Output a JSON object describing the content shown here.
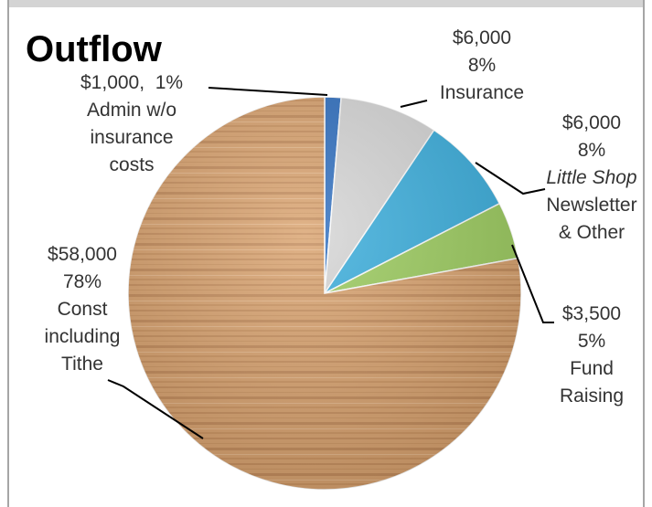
{
  "chart_data": {
    "type": "pie",
    "title": "Outflow",
    "start_angle_deg": 90,
    "direction": "clockwise",
    "slices": [
      {
        "amount": "$1,000,",
        "percent": "1%",
        "label_lines": [
          "Admin w/o",
          "insurance",
          "costs"
        ],
        "value": 1000,
        "color": "#2f6fc0"
      },
      {
        "amount": "$6,000",
        "percent": "8%",
        "label_lines": [
          "Insurance"
        ],
        "value": 6000,
        "color": "#d6d6d6"
      },
      {
        "amount": "$6,000",
        "percent": "8%",
        "label_lines": [
          "Little Shop",
          "Newsletter",
          "& Other"
        ],
        "value": 6000,
        "color": "#3aaedd"
      },
      {
        "amount": "$3,500",
        "percent": "5%",
        "label_lines": [
          "Fund",
          "Raising"
        ],
        "value": 3500,
        "color": "#9ccc5e"
      },
      {
        "amount": "$58,000",
        "percent": "78%",
        "label_lines": [
          "Const",
          "including",
          "Tithe"
        ],
        "value": 58000,
        "color": "#d9a26e"
      }
    ]
  }
}
